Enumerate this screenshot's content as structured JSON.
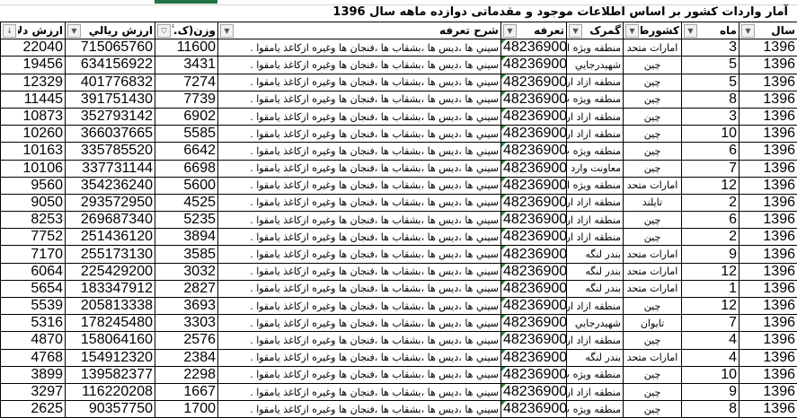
{
  "title": "آمار واردات کشور بر اساس اطلاعات موجود و مقدماتی دوازده ماهه سال 1396",
  "columns": [
    "سال",
    "ماه",
    "کشورطرف",
    "گمرک",
    "تعرفه",
    "شرح تعرفه",
    "وزن(ک.گ",
    "ارزش ريالي",
    "ارزش دلار"
  ],
  "header_icons": [
    "dropdown-icon",
    "dropdown-icon",
    "dropdown-icon",
    "dropdown-icon",
    "dropdown-icon",
    "dropdown-icon",
    "filter-icon",
    "dropdown-icon",
    "sort-desc-icon"
  ],
  "rows": [
    [
      "1396",
      "3",
      "امارات متحد",
      "منطقه ويژه ا",
      "48236900",
      "سيني ها ،ديس ها ،بشقاب ها ،فنجان ها وغيره ازكاغذ يامقوا .",
      "11600",
      "715065760",
      "22040"
    ],
    [
      "1396",
      "5",
      "چين",
      "شهيدرجايي",
      "48236900",
      "سيني ها ،ديس ها ،بشقاب ها ،فنجان ها وغيره ازكاغذ يامقوا .",
      "3431",
      "634156922",
      "19456"
    ],
    [
      "1396",
      "5",
      "چين",
      "منطقه ازاد ار",
      "48236900",
      "سيني ها ،ديس ها ،بشقاب ها ،فنجان ها وغيره ازكاغذ يامقوا .",
      "7274",
      "401776832",
      "12329"
    ],
    [
      "1396",
      "8",
      "چين",
      "منطقه ويژه ب",
      "48236900",
      "سيني ها ،ديس ها ،بشقاب ها ،فنجان ها وغيره ازكاغذ يامقوا .",
      "7739",
      "391751430",
      "11445"
    ],
    [
      "1396",
      "3",
      "چين",
      "منطقه ازاد ار",
      "48236900",
      "سيني ها ،ديس ها ،بشقاب ها ،فنجان ها وغيره ازكاغذ يامقوا .",
      "6902",
      "352793142",
      "10873"
    ],
    [
      "1396",
      "10",
      "چين",
      "منطقه ازاد ار",
      "48236900",
      "سيني ها ،ديس ها ،بشقاب ها ،فنجان ها وغيره ازكاغذ يامقوا .",
      "5585",
      "366037665",
      "10260"
    ],
    [
      "1396",
      "6",
      "چين",
      "منطقه ويژه ب",
      "48236900",
      "سيني ها ،ديس ها ،بشقاب ها ،فنجان ها وغيره ازكاغذ يامقوا .",
      "6642",
      "335785520",
      "10163"
    ],
    [
      "1396",
      "7",
      "چين",
      "معاونت وارد",
      "48236900",
      "سيني ها ،ديس ها ،بشقاب ها ،فنجان ها وغيره ازكاغذ يامقوا .",
      "6698",
      "337731144",
      "10106"
    ],
    [
      "1396",
      "12",
      "امارات متحد",
      "منطقه ويژه ا",
      "48236900",
      "سيني ها ،ديس ها ،بشقاب ها ،فنجان ها وغيره ازكاغذ يامقوا .",
      "5600",
      "354236240",
      "9560"
    ],
    [
      "1396",
      "2",
      "تايلند",
      "منطقه ازاد ار",
      "48236900",
      "سيني ها ،ديس ها ،بشقاب ها ،فنجان ها وغيره ازكاغذ يامقوا .",
      "4525",
      "293572950",
      "9050"
    ],
    [
      "1396",
      "6",
      "چين",
      "منطقه ازاد ار",
      "48236900",
      "سيني ها ،ديس ها ،بشقاب ها ،فنجان ها وغيره ازكاغذ يامقوا .",
      "5235",
      "269687340",
      "8253"
    ],
    [
      "1396",
      "2",
      "چين",
      "منطقه ازاد ار",
      "48236900",
      "سيني ها ،ديس ها ،بشقاب ها ،فنجان ها وغيره ازكاغذ يامقوا .",
      "3894",
      "251436120",
      "7752"
    ],
    [
      "1396",
      "9",
      "امارات متحد",
      "بندر لنگه",
      "48236900",
      "سيني ها ،ديس ها ،بشقاب ها ،فنجان ها وغيره ازكاغذ يامقوا .",
      "3585",
      "255173130",
      "7170"
    ],
    [
      "1396",
      "12",
      "امارات متحد",
      "بندر لنگه",
      "48236900",
      "سيني ها ،ديس ها ،بشقاب ها ،فنجان ها وغيره ازكاغذ يامقوا .",
      "3032",
      "225429200",
      "6064"
    ],
    [
      "1396",
      "1",
      "امارات متحد",
      "بندر لنگه",
      "48236900",
      "سيني ها ،ديس ها ،بشقاب ها ،فنجان ها وغيره ازكاغذ يامقوا .",
      "2827",
      "183347912",
      "5654"
    ],
    [
      "1396",
      "12",
      "چين",
      "منطقه ازاد ار",
      "48236900",
      "سيني ها ،ديس ها ،بشقاب ها ،فنجان ها وغيره ازكاغذ يامقوا .",
      "3693",
      "205813338",
      "5539"
    ],
    [
      "1396",
      "7",
      "تايوان",
      "شهيدرجايي",
      "48236900",
      "سيني ها ،ديس ها ،بشقاب ها ،فنجان ها وغيره ازكاغذ يامقوا .",
      "3303",
      "178245480",
      "5316"
    ],
    [
      "1396",
      "4",
      "چين",
      "منطقه ازاد ار",
      "48236900",
      "سيني ها ،ديس ها ،بشقاب ها ،فنجان ها وغيره ازكاغذ يامقوا .",
      "2576",
      "158064160",
      "4870"
    ],
    [
      "1396",
      "4",
      "امارات متحد",
      "بندر لنگه",
      "48236900",
      "سيني ها ،ديس ها ،بشقاب ها ،فنجان ها وغيره ازكاغذ يامقوا .",
      "2384",
      "154912320",
      "4768"
    ],
    [
      "1396",
      "10",
      "چين",
      "منطقه ويژه ب",
      "48236900",
      "سيني ها ،ديس ها ،بشقاب ها ،فنجان ها وغيره ازكاغذ يامقوا .",
      "2298",
      "139582377",
      "3899"
    ],
    [
      "1396",
      "9",
      "چين",
      "منطقه ازاد ار",
      "48236900",
      "سيني ها ،ديس ها ،بشقاب ها ،فنجان ها وغيره ازكاغذ يامقوا .",
      "1667",
      "116220208",
      "3297"
    ],
    [
      "1396",
      "8",
      "چين",
      "منطقه ويژه ب",
      "48236900",
      "سيني ها ،ديس ها ،بشقاب ها ،فنجان ها وغيره ازكاغذ يامقوا .",
      "1700",
      "90357750",
      "2625"
    ]
  ]
}
